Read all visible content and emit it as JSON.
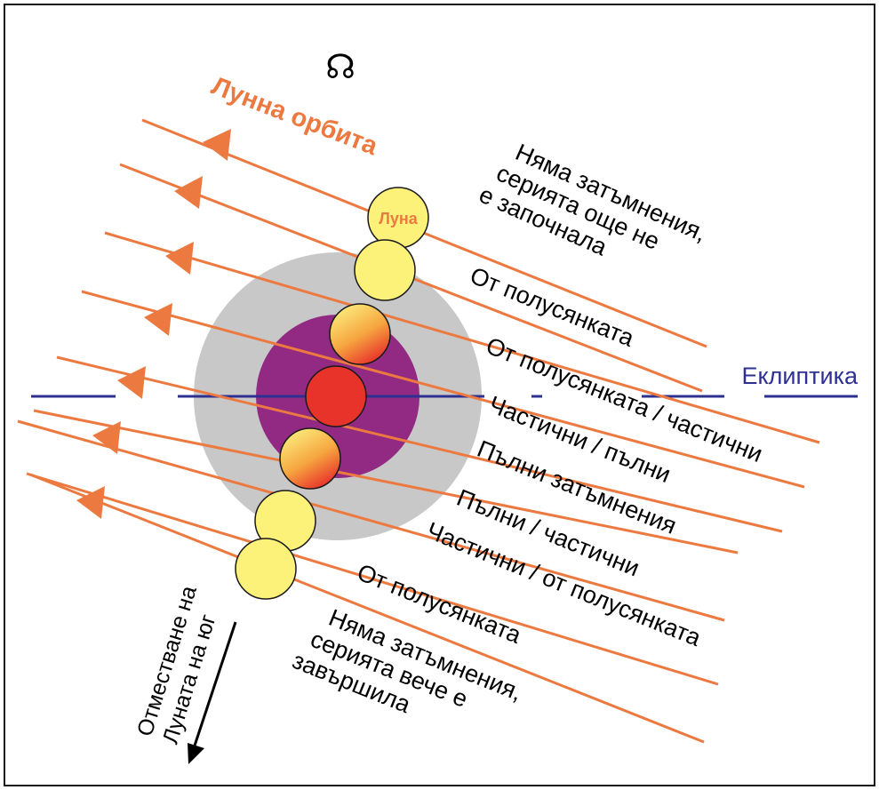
{
  "node_symbol": "☊",
  "orbit_title": "Лунна орбита",
  "ecliptic_label": "Еклиптика",
  "moon_label": "Луна",
  "side_note": [
    "Отместване на",
    "Луната на юг"
  ],
  "orbit_labels": [
    [
      "Няма затъмнения,",
      "серията още не",
      "е започнала"
    ],
    [
      "От полусянката"
    ],
    [
      "От полусянката / частични"
    ],
    [
      "Частични / пълни"
    ],
    [
      "Пълни затъмнения"
    ],
    [
      "Пълни / частични"
    ],
    [
      "Частични / от полусянката"
    ],
    [
      "От полусянката"
    ],
    [
      "Няма затъмнения,",
      "серията вече е",
      "завършила"
    ]
  ],
  "colors": {
    "orbit": "#ec7a40",
    "ecliptic": "#2e3091",
    "penumbra": "#c8c8c8",
    "umbra": "#922a83",
    "moon_no_eclipse": "#fcf27a",
    "moon_total": "#e8332a"
  }
}
